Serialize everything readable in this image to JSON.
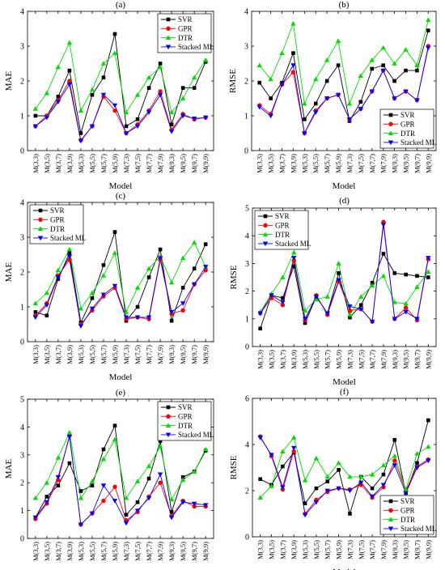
{
  "colors": {
    "SVR": "#000000",
    "GPR": "#ff0000",
    "DTR": "#00dd00",
    "Stacked ML": "#0000ff"
  },
  "chart_data": [
    {
      "type": "line",
      "panel_label": "(a)",
      "xlabel": "Model",
      "ylabel": "MAE",
      "ylim": [
        0,
        4
      ],
      "yticks": [
        0,
        1,
        2,
        3,
        4
      ],
      "legend": "top-right",
      "categories": [
        "M(3,3)",
        "M(3,5)",
        "M(3,7)",
        "M(3,9)",
        "M(5,3)",
        "M(5,5)",
        "M(5,7)",
        "M(5,9)",
        "M(7,3)",
        "M(7,5)",
        "M(7,7)",
        "M(7,9)",
        "M(9,3)",
        "M(9,5)",
        "M(9,7)",
        "M(9,9)"
      ],
      "series": [
        {
          "name": "SVR",
          "values": [
            1.0,
            1.0,
            1.55,
            2.3,
            0.5,
            1.6,
            2.1,
            3.35,
            0.7,
            0.9,
            1.8,
            2.5,
            0.75,
            1.8,
            1.8,
            2.55
          ]
        },
        {
          "name": "GPR",
          "values": [
            0.7,
            1.0,
            1.45,
            2.0,
            0.3,
            0.7,
            1.55,
            1.15,
            0.5,
            0.75,
            1.15,
            1.7,
            0.6,
            1.05,
            0.9,
            0.95
          ]
        },
        {
          "name": "DTR",
          "values": [
            1.2,
            1.65,
            2.4,
            3.1,
            1.15,
            1.75,
            2.5,
            2.8,
            1.1,
            1.6,
            2.1,
            2.4,
            1.1,
            1.5,
            2.1,
            2.6
          ]
        },
        {
          "name": "Stacked ML",
          "values": [
            0.7,
            0.95,
            1.4,
            1.9,
            0.28,
            0.7,
            1.6,
            1.3,
            0.5,
            0.7,
            1.1,
            1.6,
            0.55,
            1.0,
            0.92,
            0.95
          ]
        }
      ]
    },
    {
      "type": "line",
      "panel_label": "(b)",
      "xlabel": "Model",
      "ylabel": "RMSE",
      "ylim": [
        0,
        4
      ],
      "yticks": [
        0,
        1,
        2,
        3,
        4
      ],
      "legend": "bottom-right",
      "categories": [
        "M(3,3)",
        "M(3,5)",
        "M(3,7)",
        "M(3,9)",
        "M(5,3)",
        "M(5,5)",
        "M(5,7)",
        "M(5,9)",
        "M(7,3)",
        "M(7,5)",
        "M(7,7)",
        "M(7,9)",
        "M(9,3)",
        "M(9,5)",
        "M(9,7)",
        "M(9,9)"
      ],
      "series": [
        {
          "name": "SVR",
          "values": [
            1.95,
            1.5,
            1.95,
            2.8,
            0.9,
            1.35,
            2.0,
            2.45,
            0.85,
            1.4,
            2.35,
            2.45,
            2.0,
            2.3,
            2.3,
            3.45
          ]
        },
        {
          "name": "GPR",
          "values": [
            1.3,
            1.05,
            1.9,
            2.25,
            0.5,
            1.15,
            1.5,
            1.6,
            0.9,
            1.2,
            1.7,
            2.3,
            1.5,
            1.7,
            1.45,
            3.0
          ]
        },
        {
          "name": "DTR",
          "values": [
            2.45,
            2.05,
            2.8,
            3.65,
            1.35,
            2.05,
            2.6,
            3.15,
            1.35,
            2.15,
            2.6,
            2.95,
            2.5,
            2.9,
            2.45,
            3.75
          ]
        },
        {
          "name": "Stacked ML",
          "values": [
            1.25,
            1.0,
            1.9,
            2.45,
            0.5,
            1.1,
            1.5,
            1.6,
            0.9,
            1.2,
            1.7,
            2.3,
            1.5,
            1.7,
            1.45,
            2.95
          ]
        }
      ]
    },
    {
      "type": "line",
      "panel_label": "(c)",
      "xlabel": "Model",
      "ylabel": "MAE",
      "ylim": [
        0,
        4
      ],
      "yticks": [
        0,
        1,
        2,
        3,
        4
      ],
      "legend": "top-left",
      "categories": [
        "M(3,3)",
        "M(3,5)",
        "M(3,7)",
        "M(3,9)",
        "M(5,3)",
        "M(5,5)",
        "M(5,7)",
        "M(5,9)",
        "M(7,3)",
        "M(7,5)",
        "M(7,7)",
        "M(7,9)",
        "M(9,3)",
        "M(9,5)",
        "M(9,7)",
        "M(9,9)"
      ],
      "series": [
        {
          "name": "SVR",
          "values": [
            0.85,
            0.75,
            1.8,
            2.55,
            0.55,
            1.25,
            2.2,
            3.15,
            0.6,
            1.0,
            1.85,
            2.65,
            0.6,
            1.55,
            2.1,
            2.8
          ]
        },
        {
          "name": "GPR",
          "values": [
            0.75,
            1.1,
            1.9,
            2.35,
            0.5,
            0.9,
            1.3,
            1.55,
            0.65,
            0.7,
            0.65,
            2.35,
            0.8,
            0.9,
            1.65,
            2.05
          ]
        },
        {
          "name": "DTR",
          "values": [
            1.1,
            1.4,
            2.05,
            2.65,
            0.95,
            1.4,
            1.9,
            2.55,
            0.85,
            1.55,
            2.1,
            2.45,
            1.7,
            2.4,
            2.85,
            2.15
          ]
        },
        {
          "name": "Stacked ML",
          "values": [
            0.7,
            1.05,
            1.85,
            2.45,
            0.45,
            0.95,
            1.35,
            1.6,
            0.7,
            0.7,
            0.7,
            2.4,
            0.85,
            1.1,
            1.65,
            2.15
          ]
        }
      ]
    },
    {
      "type": "line",
      "panel_label": "(d)",
      "xlabel": "Model",
      "ylabel": "RMSE",
      "ylim": [
        0,
        5
      ],
      "yticks": [
        0,
        1,
        2,
        3,
        4,
        5
      ],
      "legend": "top-left",
      "categories": [
        "M(3,3)",
        "M(3,5)",
        "M(3,7)",
        "M(3,9)",
        "M(5,3)",
        "M(5,5)",
        "M(5,7)",
        "M(5,9)",
        "M(7,3)",
        "M(7,5)",
        "M(7,7)",
        "M(7,9)",
        "M(9,3)",
        "M(9,5)",
        "M(9,7)",
        "M(9,9)"
      ],
      "series": [
        {
          "name": "SVR",
          "values": [
            0.65,
            1.85,
            1.75,
            2.9,
            0.85,
            1.8,
            1.2,
            2.65,
            1.05,
            1.5,
            2.3,
            3.35,
            2.65,
            2.6,
            2.55,
            2.5
          ]
        },
        {
          "name": "GPR",
          "values": [
            1.2,
            1.75,
            1.5,
            3.1,
            0.95,
            1.85,
            1.15,
            2.35,
            1.3,
            1.35,
            0.9,
            4.5,
            1.0,
            1.4,
            0.95,
            3.15
          ]
        },
        {
          "name": "DTR",
          "values": [
            1.25,
            1.9,
            2.5,
            3.4,
            1.3,
            1.7,
            1.8,
            3.0,
            1.15,
            1.8,
            2.2,
            2.55,
            1.6,
            1.55,
            2.15,
            2.7
          ]
        },
        {
          "name": "Stacked ML",
          "values": [
            1.2,
            1.85,
            1.6,
            3.2,
            1.0,
            1.8,
            1.2,
            2.4,
            1.45,
            1.35,
            0.9,
            4.4,
            1.0,
            1.25,
            1.0,
            3.2
          ]
        }
      ]
    },
    {
      "type": "line",
      "panel_label": "(e)",
      "xlabel": "Model",
      "ylabel": "MAE",
      "ylim": [
        0,
        5
      ],
      "yticks": [
        0,
        1,
        2,
        3,
        4,
        5
      ],
      "legend": "top-right",
      "categories": [
        "M(3,3)",
        "M(3,5)",
        "M(3,7)",
        "M(3,9)",
        "M(5,3)",
        "M(5,5)",
        "M(5,7)",
        "M(5,9)",
        "M(7,3)",
        "M(7,5)",
        "M(7,7)",
        "M(7,9)",
        "M(9,3)",
        "M(9,5)",
        "M(9,7)",
        "M(9,9)"
      ],
      "series": [
        {
          "name": "SVR",
          "values": [
            0.75,
            1.5,
            1.9,
            2.7,
            1.7,
            1.9,
            3.2,
            4.05,
            0.85,
            1.3,
            2.15,
            3.5,
            0.95,
            2.2,
            2.4,
            3.15
          ]
        },
        {
          "name": "GPR",
          "values": [
            0.7,
            1.25,
            2.1,
            3.7,
            0.5,
            0.9,
            1.35,
            1.85,
            0.65,
            0.95,
            1.5,
            2.0,
            0.8,
            1.35,
            1.15,
            1.15
          ]
        },
        {
          "name": "DTR",
          "values": [
            1.45,
            2.0,
            2.9,
            3.8,
            1.45,
            2.05,
            2.85,
            3.55,
            1.45,
            2.05,
            2.6,
            3.3,
            1.4,
            2.1,
            2.4,
            3.2
          ]
        },
        {
          "name": "Stacked ML",
          "values": [
            0.75,
            1.3,
            2.2,
            3.65,
            0.5,
            0.9,
            1.9,
            1.35,
            0.55,
            1.0,
            1.45,
            2.3,
            0.75,
            1.3,
            1.25,
            1.2
          ]
        }
      ]
    },
    {
      "type": "line",
      "panel_label": "(f)",
      "xlabel": "Model",
      "ylabel": "RMSE",
      "ylim": [
        0,
        6
      ],
      "yticks": [
        0,
        2,
        4,
        6
      ],
      "legend": "bottom-right",
      "categories": [
        "M(3,3)",
        "M(3,5)",
        "M(3,7)",
        "M(3,9)",
        "M(5,3)",
        "M(5,5)",
        "M(5,7)",
        "M(5,9)",
        "M(7,3)",
        "M(7,5)",
        "M(7,7)",
        "M(7,9)",
        "M(9,3)",
        "M(9,5)",
        "M(9,7)",
        "M(9,9)"
      ],
      "series": [
        {
          "name": "SVR",
          "values": [
            2.5,
            2.25,
            3.05,
            3.65,
            1.45,
            2.1,
            2.4,
            2.9,
            1.0,
            2.6,
            2.1,
            2.7,
            4.2,
            1.9,
            3.2,
            5.05
          ]
        },
        {
          "name": "GPR",
          "values": [
            4.35,
            3.5,
            2.05,
            3.7,
            1.0,
            1.6,
            1.95,
            2.1,
            2.05,
            2.25,
            1.7,
            2.15,
            3.3,
            2.0,
            3.05,
            3.35
          ]
        },
        {
          "name": "DTR",
          "values": [
            1.7,
            2.2,
            3.7,
            4.3,
            2.45,
            3.4,
            2.6,
            3.2,
            2.6,
            2.6,
            2.7,
            3.1,
            3.5,
            2.05,
            3.6,
            3.9
          ]
        },
        {
          "name": "Stacked ML",
          "values": [
            4.3,
            3.55,
            2.15,
            3.85,
            0.95,
            1.5,
            2.0,
            2.1,
            2.0,
            2.35,
            1.75,
            2.25,
            3.1,
            1.9,
            3.0,
            3.3
          ]
        }
      ]
    }
  ]
}
